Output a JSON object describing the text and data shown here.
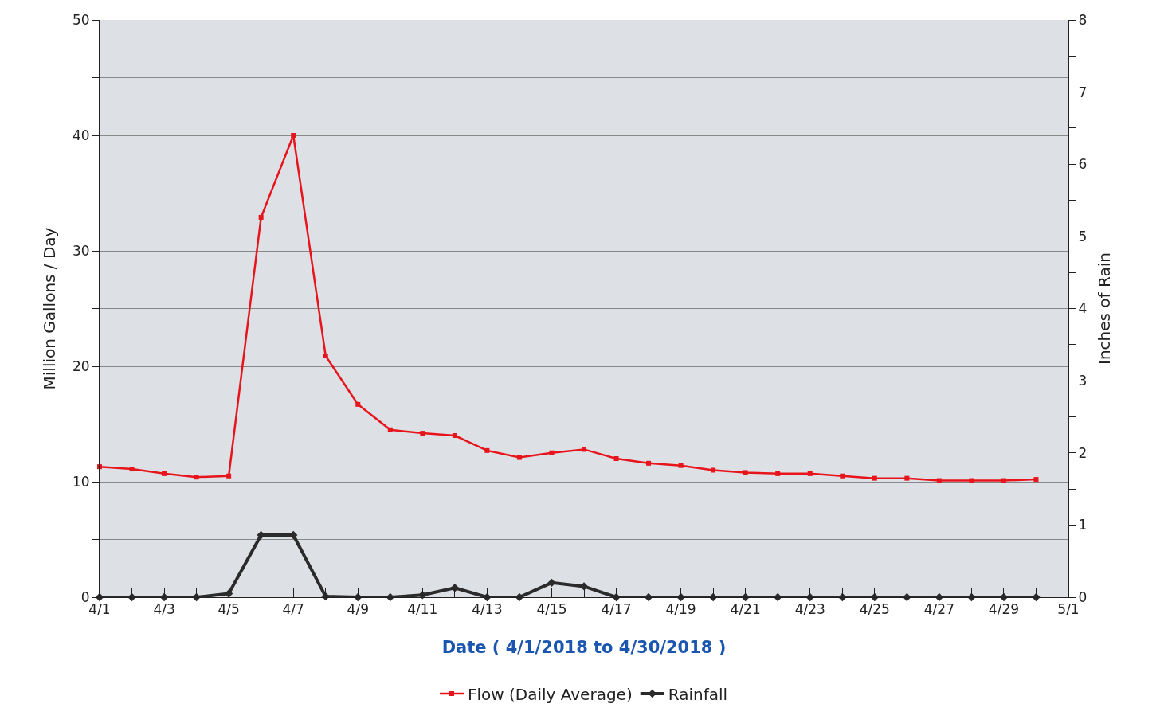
{
  "chart_data": {
    "type": "line",
    "xlabel": "Date ( 4/1/2018 to 4/30/2018 )",
    "ylabel": "Million Gallons / Day",
    "y2label": "Inches of Rain",
    "x": [
      "--04-01",
      "--04-02",
      "--04-03",
      "--04-04",
      "--04-05",
      "--04-06",
      "--04-07",
      "--04-08",
      "--04-09",
      "--04-10",
      "--04-11",
      "--04-12",
      "--04-13",
      "--04-14",
      "--04-15",
      "--04-16",
      "--04-17",
      "--04-18",
      "--04-19",
      "--04-20",
      "--04-21",
      "--04-22",
      "--04-23",
      "--04-24",
      "--04-25",
      "--04-26",
      "--04-27",
      "--04-28",
      "--04-29",
      "--04-30"
    ],
    "series": [
      {
        "name": "Flow (Daily Average)",
        "color": "#e8141c",
        "marker": "square",
        "values": [
          11.3,
          11.1,
          10.7,
          10.4,
          10.5,
          32.9,
          40,
          20.9,
          16.7,
          14.5,
          14.2,
          14.0,
          12.7,
          12.1,
          12.5,
          12.8,
          12.0,
          11.6,
          11.4,
          11.0,
          10.8,
          10.7,
          10.7,
          10.5,
          10.3,
          10.3,
          10.1,
          10.1,
          10.1,
          10.2
        ]
      },
      {
        "name": "Rainfall",
        "color": "#2b2b2b",
        "marker": "diamond",
        "axis": "y2",
        "values": [
          0,
          0,
          0,
          0,
          0.05,
          0.86,
          0.86,
          0.01,
          0,
          0,
          0.03,
          0.13,
          0,
          0,
          0.2,
          0.15,
          0,
          0,
          0,
          0,
          0,
          0,
          0,
          0,
          0,
          0,
          0,
          0,
          0,
          0
        ]
      }
    ],
    "xlim": [
      "--04-01",
      "--05-01"
    ],
    "xticks": [
      {
        "value": "--04-01",
        "label": "4/1"
      },
      {
        "value": "--04-02",
        "label": null
      },
      {
        "value": "--04-03",
        "label": "4/3"
      },
      {
        "value": "--04-04",
        "label": null
      },
      {
        "value": "--04-05",
        "label": "4/5"
      },
      {
        "value": "--04-06",
        "label": null
      },
      {
        "value": "--04-07",
        "label": "4/7"
      },
      {
        "value": "--04-08",
        "label": null
      },
      {
        "value": "--04-09",
        "label": "4/9"
      },
      {
        "value": "--04-10",
        "label": null
      },
      {
        "value": "--04-11",
        "label": "4/11"
      },
      {
        "value": "--04-12",
        "label": null
      },
      {
        "value": "--04-13",
        "label": "4/13"
      },
      {
        "value": "--04-14",
        "label": null
      },
      {
        "value": "--04-15",
        "label": "4/15"
      },
      {
        "value": "--04-16",
        "label": null
      },
      {
        "value": "--04-17",
        "label": "4/17"
      },
      {
        "value": "--04-18",
        "label": null
      },
      {
        "value": "--04-19",
        "label": "4/19"
      },
      {
        "value": "--04-20",
        "label": null
      },
      {
        "value": "--04-21",
        "label": "4/21"
      },
      {
        "value": "--04-22",
        "label": null
      },
      {
        "value": "--04-23",
        "label": "4/23"
      },
      {
        "value": "--04-24",
        "label": null
      },
      {
        "value": "--04-25",
        "label": "4/25"
      },
      {
        "value": "--04-26",
        "label": null
      },
      {
        "value": "--04-27",
        "label": "4/27"
      },
      {
        "value": "--04-28",
        "label": null
      },
      {
        "value": "--04-29",
        "label": "4/29"
      },
      {
        "value": "--04-30",
        "label": null
      },
      {
        "value": "--05-01",
        "label": "5/1"
      }
    ],
    "ylim": [
      0,
      50
    ],
    "yticks": [
      0,
      {
        "value": 5,
        "label": null
      },
      10,
      {
        "value": 15,
        "label": null
      },
      20,
      {
        "value": 25,
        "label": null
      },
      30,
      {
        "value": 35,
        "label": null
      },
      40,
      {
        "value": 45,
        "label": null
      },
      50
    ],
    "y2lim": [
      0,
      8
    ],
    "y2ticks": [
      0,
      {
        "value": 0.5,
        "label": null
      },
      1,
      {
        "value": 1.5,
        "label": null
      },
      2,
      {
        "value": 2.5,
        "label": null
      },
      3,
      {
        "value": 3.5,
        "label": null
      },
      4,
      {
        "value": 4.5,
        "label": null
      },
      5,
      {
        "value": 5.5,
        "label": null
      },
      6,
      {
        "value": 6.5,
        "label": null
      },
      7,
      {
        "value": 7.5,
        "label": null
      },
      8
    ],
    "grid": "y",
    "legend": "bottom",
    "line_style": "solid"
  }
}
